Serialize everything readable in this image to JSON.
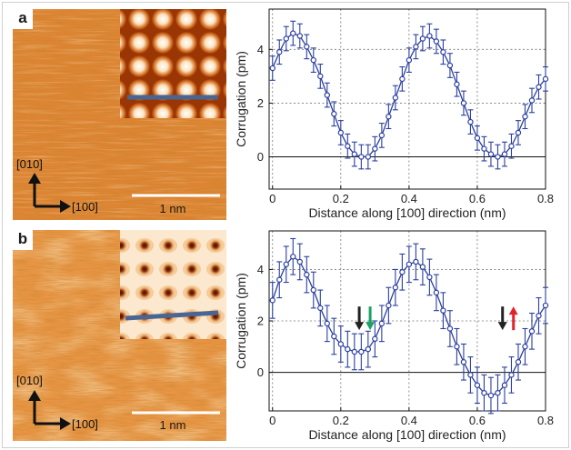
{
  "figure": {
    "panels": [
      {
        "id": "a",
        "label": "a",
        "image": {
          "crystal_axis_vertical": "[010]",
          "crystal_axis_horizontal": "[100]",
          "scalebar_label": "1 nm",
          "inset_contrast": "bright-lattice",
          "colors": {
            "dark": "#b0450c",
            "mid": "#e08a3a",
            "light": "#f3b873",
            "line": "#4a6592"
          }
        }
      },
      {
        "id": "b",
        "label": "b",
        "image": {
          "crystal_axis_vertical": "[010]",
          "crystal_axis_horizontal": "[100]",
          "scalebar_label": "1 nm",
          "inset_contrast": "dark-pits",
          "colors": {
            "dark": "#b0450c",
            "mid": "#e08a3a",
            "light": "#f3b873",
            "line": "#4a6592"
          }
        }
      }
    ],
    "arrow_colors": {
      "down_black": "#222222",
      "down_green": "#1aa163",
      "up_red": "#e0242c"
    }
  },
  "chart_data": [
    {
      "type": "line",
      "panel": "a",
      "xlabel": "Distance along [100] direction (nm)",
      "ylabel": "Corrugation (pm)",
      "xlim": [
        -0.01,
        0.8
      ],
      "ylim": [
        -1.2,
        5.5
      ],
      "xticks": [
        "0",
        "0.2",
        "0.4",
        "0.6",
        "0.8"
      ],
      "yticks": [
        "0",
        "2",
        "4"
      ],
      "grid": true,
      "zero_line": true,
      "series": [
        {
          "color": "#2b3fa0",
          "marker": "open-circle",
          "x": [
            0,
            0.02,
            0.04,
            0.06,
            0.08,
            0.1,
            0.12,
            0.14,
            0.16,
            0.18,
            0.2,
            0.22,
            0.24,
            0.26,
            0.28,
            0.3,
            0.32,
            0.34,
            0.36,
            0.38,
            0.4,
            0.42,
            0.44,
            0.46,
            0.48,
            0.5,
            0.52,
            0.54,
            0.56,
            0.58,
            0.6,
            0.62,
            0.64,
            0.66,
            0.68,
            0.7,
            0.72,
            0.74,
            0.76,
            0.78,
            0.8
          ],
          "y": [
            3.3,
            3.9,
            4.4,
            4.6,
            4.5,
            4.1,
            3.6,
            3.0,
            2.3,
            1.6,
            0.9,
            0.4,
            0.1,
            0.0,
            0.0,
            0.3,
            0.8,
            1.5,
            2.2,
            2.9,
            3.6,
            4.1,
            4.4,
            4.5,
            4.3,
            3.9,
            3.4,
            2.7,
            2.0,
            1.3,
            0.7,
            0.3,
            0.1,
            0.0,
            0.1,
            0.4,
            0.9,
            1.5,
            2.1,
            2.6,
            2.9
          ],
          "error": 0.45
        }
      ],
      "annotations": []
    },
    {
      "type": "line",
      "panel": "b",
      "xlabel": "Distance along [100] direction (nm)",
      "ylabel": "Corrugation (pm)",
      "xlim": [
        -0.01,
        0.8
      ],
      "ylim": [
        -1.5,
        5.5
      ],
      "xticks": [
        "0",
        "0.2",
        "0.4",
        "0.6",
        "0.8"
      ],
      "yticks": [
        "0",
        "2",
        "4"
      ],
      "grid": true,
      "zero_line": true,
      "series": [
        {
          "color": "#2b3fa0",
          "marker": "open-circle",
          "x": [
            0,
            0.02,
            0.04,
            0.06,
            0.08,
            0.1,
            0.12,
            0.14,
            0.16,
            0.18,
            0.2,
            0.22,
            0.24,
            0.26,
            0.28,
            0.3,
            0.32,
            0.34,
            0.36,
            0.38,
            0.4,
            0.42,
            0.44,
            0.46,
            0.48,
            0.5,
            0.52,
            0.54,
            0.56,
            0.58,
            0.6,
            0.62,
            0.64,
            0.66,
            0.68,
            0.7,
            0.72,
            0.74,
            0.76,
            0.78,
            0.8
          ],
          "y": [
            2.8,
            3.6,
            4.2,
            4.5,
            4.3,
            3.8,
            3.2,
            2.5,
            1.9,
            1.4,
            1.1,
            0.9,
            0.8,
            0.8,
            0.9,
            1.3,
            1.9,
            2.6,
            3.3,
            3.9,
            4.2,
            4.3,
            4.1,
            3.7,
            3.1,
            2.4,
            1.7,
            1.0,
            0.4,
            -0.1,
            -0.5,
            -0.8,
            -0.9,
            -0.8,
            -0.5,
            -0.1,
            0.4,
            1.0,
            1.6,
            2.2,
            2.6
          ],
          "error": 0.7
        }
      ],
      "annotations": [
        {
          "type": "spin-arrows",
          "x": 0.27,
          "y": 2.1,
          "arrows": [
            "down-black",
            "down-green"
          ]
        },
        {
          "type": "spin-arrows",
          "x": 0.69,
          "y": 2.1,
          "arrows": [
            "down-black",
            "up-red"
          ]
        }
      ]
    }
  ]
}
